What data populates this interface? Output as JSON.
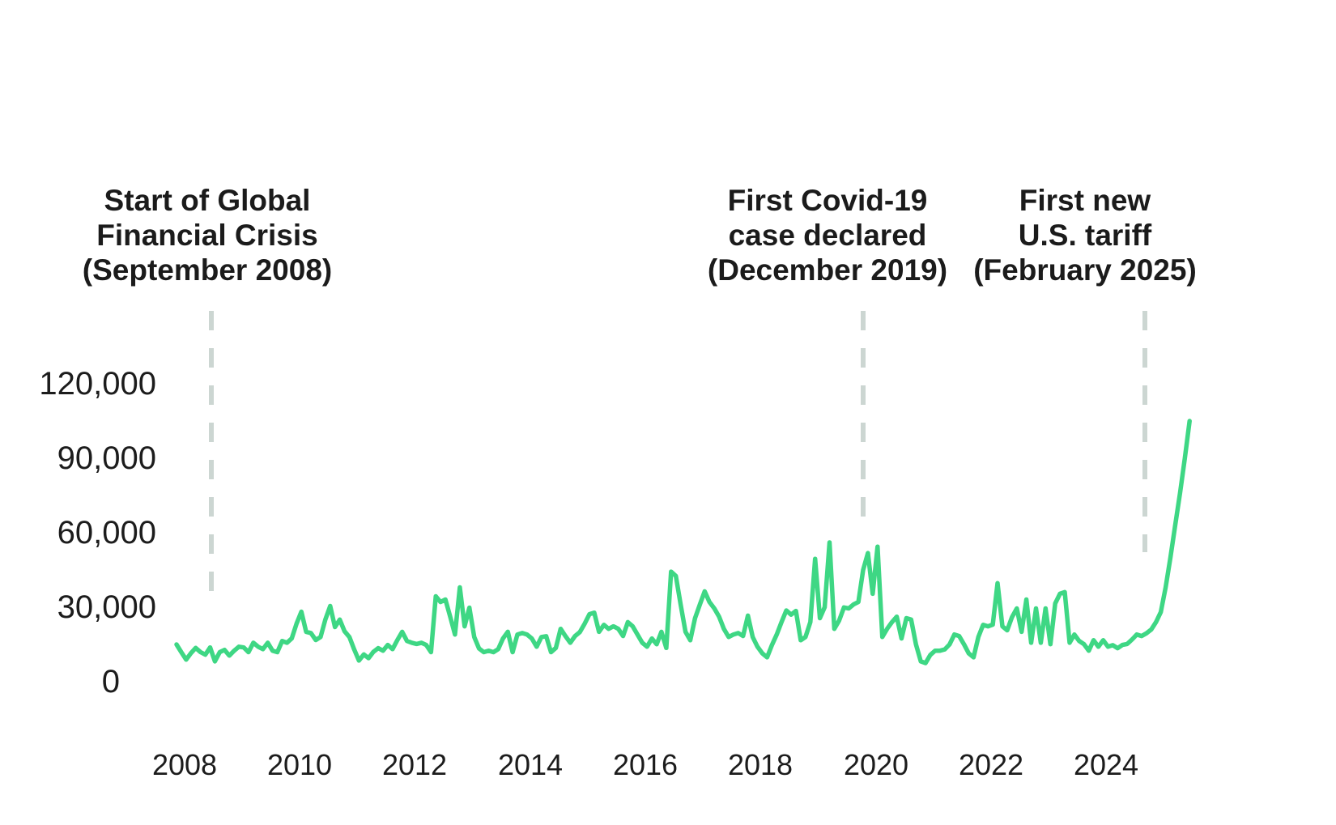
{
  "chart_data": {
    "type": "line",
    "title": "",
    "xlabel": "",
    "ylabel": "",
    "x_start_year": 2008,
    "x_step_months": 1,
    "ylim": [
      0,
      130000
    ],
    "grid": false,
    "legend": false,
    "line_color": "#3ed784",
    "annotation_line_color": "#ccd6d2",
    "y_tick_labels": [
      "120,000",
      "90,000",
      "60,000",
      "30,000",
      "0"
    ],
    "x_tick_labels": [
      "2008",
      "2010",
      "2012",
      "2014",
      "2016",
      "2018",
      "2020",
      "2022",
      "2024"
    ],
    "annotations": [
      {
        "lines": [
          "Start of Global",
          "Financial Crisis",
          "(September 2008)"
        ]
      },
      {
        "lines": [
          "First Covid-19",
          "case declared",
          "(December 2019)"
        ]
      },
      {
        "lines": [
          "First new",
          "U.S. tariff",
          "(February 2025)"
        ]
      }
    ],
    "values": [
      15000,
      11900,
      8900,
      11500,
      13600,
      11900,
      10900,
      13800,
      8200,
      11900,
      12800,
      10500,
      12500,
      14100,
      13800,
      11900,
      15700,
      14100,
      13100,
      15700,
      12500,
      11900,
      16400,
      15700,
      17400,
      23400,
      28200,
      20100,
      19600,
      16800,
      18000,
      25000,
      30500,
      22000,
      25000,
      20300,
      18000,
      13000,
      8500,
      11000,
      9500,
      12000,
      13500,
      12500,
      14800,
      13100,
      16800,
      20100,
      16400,
      15700,
      15200,
      15700,
      14800,
      11900,
      34400,
      32100,
      33100,
      26200,
      19000,
      38000,
      22300,
      29800,
      18000,
      13400,
      11900,
      12500,
      11900,
      13100,
      17400,
      20100,
      11900,
      19000,
      19600,
      19000,
      17400,
      14100,
      18000,
      18300,
      11900,
      13600,
      21300,
      18400,
      15700,
      18400,
      20000,
      23300,
      27200,
      27800,
      20100,
      22900,
      21300,
      22300,
      21300,
      18400,
      24000,
      22300,
      19000,
      15700,
      14100,
      17400,
      15100,
      20100,
      13600,
      44300,
      42600,
      31100,
      20100,
      16700,
      25600,
      31100,
      36400,
      32100,
      29500,
      26200,
      21300,
      18000,
      19000,
      19600,
      18400,
      26600,
      18000,
      14100,
      11400,
      9800,
      14700,
      19000,
      24000,
      28700,
      27000,
      28500,
      16700,
      18000,
      24000,
      49500,
      25600,
      30000,
      56100,
      21300,
      24600,
      29900,
      29500,
      31100,
      32100,
      45000,
      51800,
      35400,
      54400,
      18000,
      21300,
      24000,
      26200,
      17400,
      25600,
      25000,
      15100,
      8200,
      7500,
      10800,
      12500,
      12500,
      13000,
      15000,
      19000,
      18400,
      15100,
      11400,
      9800,
      18000,
      22900,
      22300,
      23000,
      39700,
      22300,
      20700,
      26000,
      29500,
      20100,
      33100,
      15700,
      29500,
      15700,
      29500,
      15100,
      31500,
      35400,
      36100,
      15700,
      19000,
      16400,
      15100,
      12500,
      16700,
      14100,
      16700,
      14100,
      14700,
      13500,
      14800,
      15200,
      17000,
      19000,
      18400,
      19500,
      21000,
      24000,
      28000,
      38000,
      50000,
      63000,
      76000,
      90000,
      105000
    ]
  }
}
